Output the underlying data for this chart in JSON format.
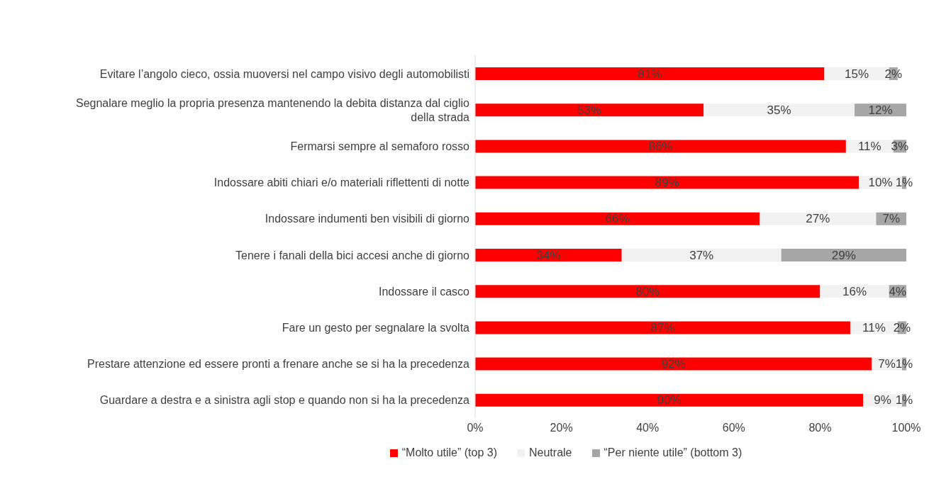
{
  "chart_data": {
    "type": "bar",
    "orientation": "horizontal",
    "stacked": true,
    "categories": [
      "Evitare l’angolo cieco, ossia muoversi nel campo visivo degli automobilisti",
      "Segnalare meglio la propria presenza mantenendo la debita distanza dal ciglio della strada",
      "Fermarsi sempre al semaforo rosso",
      "Indossare abiti chiari e/o materiali riflettenti di notte",
      "Indossare indumenti ben visibili di giorno",
      "Tenere i fanali della bici accesi anche di giorno",
      "Indossare il casco",
      "Fare un gesto per segnalare la svolta",
      "Prestare attenzione ed essere pronti a frenare anche se si ha la precedenza",
      "Guardare a destra e a sinistra agli stop e quando non si ha la precedenza"
    ],
    "series": [
      {
        "name": "“Molto utile” (top 3)",
        "color": "#ff0000",
        "values": [
          81,
          53,
          86,
          89,
          66,
          34,
          80,
          87,
          92,
          90
        ],
        "value_labels": [
          "81%",
          "53%",
          "86%",
          "89%",
          "66%",
          "34%",
          "80%",
          "87%",
          "92%",
          "90%"
        ]
      },
      {
        "name": "Neutrale",
        "color": "#f2f2f2",
        "values": [
          15,
          35,
          11,
          10,
          27,
          37,
          16,
          11,
          7,
          9
        ],
        "value_labels": [
          "15%",
          "35%",
          "11%",
          "10%",
          "27%",
          "37%",
          "16%",
          "11%",
          "7%",
          "9%"
        ]
      },
      {
        "name": "“Per niente utile” (bottom 3)",
        "color": "#a6a6a6",
        "values": [
          2,
          12,
          3,
          1,
          7,
          29,
          4,
          2,
          1,
          1
        ],
        "value_labels": [
          "2%",
          "12%",
          "3%",
          "1%",
          "7%",
          "29%",
          "4%",
          "2%",
          "1%",
          "1%"
        ]
      }
    ],
    "xlim": [
      0,
      100
    ],
    "xticks": [
      {
        "value": 0,
        "label": "0%"
      },
      {
        "value": 20,
        "label": "20%"
      },
      {
        "value": 40,
        "label": "40%"
      },
      {
        "value": 60,
        "label": "60%"
      },
      {
        "value": 80,
        "label": "80%"
      },
      {
        "value": 100,
        "label": "100%"
      }
    ],
    "grid": false,
    "legend": "bottom"
  }
}
